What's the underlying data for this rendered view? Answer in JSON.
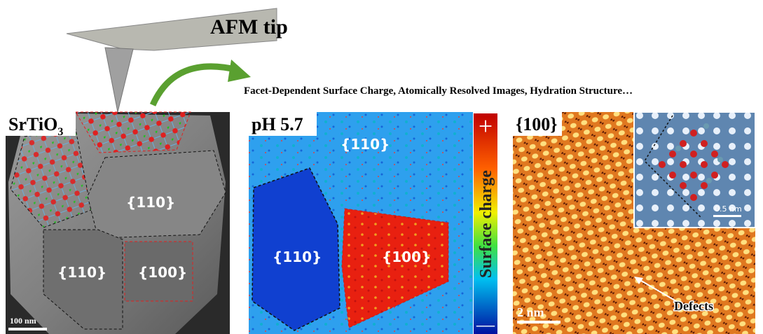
{
  "header": {
    "tip_label": "AFM tip",
    "caption": "Facet-Dependent Surface Charge, Atomically Resolved Images, Hydration Structure…"
  },
  "panels": [
    {
      "title": "SrTiO",
      "title_sub": "3",
      "labels": [
        "{110}",
        "{110}",
        "{100}"
      ],
      "scale_bar": "100 nm"
    },
    {
      "title": "pH 5.7",
      "labels": [
        "{110}",
        "{110}",
        "{100}"
      ],
      "colorbar": {
        "top": "+",
        "label": "Surface charge",
        "bottom": "—"
      }
    },
    {
      "title": "{100}",
      "inset_scale": "0.5 nm",
      "scale_bar": "2 nm",
      "annotation": "Defects"
    }
  ]
}
